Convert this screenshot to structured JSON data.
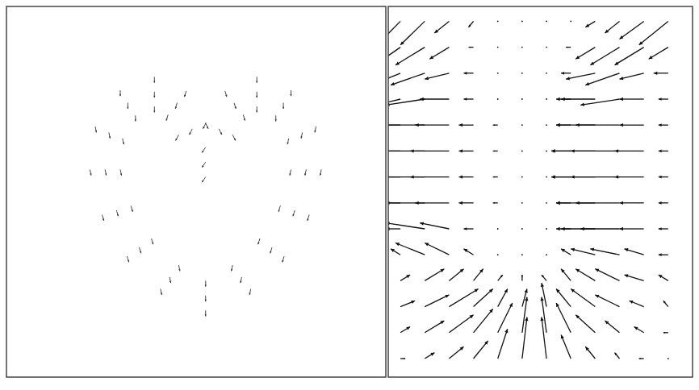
{
  "chart_data": [
    {
      "type": "quiver",
      "xlim": [
        0,
        100
      ],
      "ylim": [
        0,
        100
      ],
      "tick_labels": false,
      "x": [
        52.5,
        52.5,
        52.5,
        45.4,
        43,
        40.6,
        38.2,
        35,
        31.8,
        32.8,
        29,
        25.2,
        30,
        26,
        22,
        30.6,
        27,
        23.4,
        34,
        32,
        30,
        39,
        39,
        39,
        42.6,
        45,
        47.4,
        45.4,
        49,
        52.6,
        52.5,
        52.5,
        52.5,
        59.6,
        62,
        64.4,
        66.8,
        70,
        73.2,
        72.2,
        76,
        79.8,
        75,
        79,
        83,
        74.4,
        78,
        81.6,
        71,
        73,
        75,
        66,
        66,
        66,
        62.4,
        60,
        57.6,
        59.6,
        56,
        52.4
      ],
      "y": [
        18,
        22,
        26,
        30.2,
        27,
        23.8,
        37.4,
        35,
        32.6,
        46.2,
        45,
        43.8,
        56,
        56,
        56,
        64.4,
        66,
        67.6,
        70.6,
        74,
        77.4,
        73,
        77,
        81,
        70.8,
        74,
        77.2,
        65.4,
        67,
        68.6,
        54,
        58,
        62,
        30.2,
        27,
        23.8,
        37.4,
        35,
        32.6,
        46.2,
        45,
        43.8,
        56,
        56,
        56,
        64.4,
        66,
        67.6,
        70.6,
        74,
        77.4,
        73,
        77,
        81,
        70.8,
        74,
        77.2,
        65.4,
        67,
        68.6
      ],
      "u": [
        0,
        0,
        0,
        0.2,
        0.2,
        0.2,
        0.3,
        0.3,
        0.3,
        0.3,
        0.3,
        0.3,
        0.2,
        0.2,
        0.2,
        0.2,
        0.2,
        0.2,
        0,
        0,
        0,
        0,
        0,
        0,
        -0.3,
        -0.3,
        -0.3,
        -0.5,
        -0.5,
        -0.5,
        -0.6,
        -0.6,
        -0.6,
        -0.2,
        -0.2,
        -0.2,
        -0.3,
        -0.3,
        -0.3,
        -0.3,
        -0.3,
        -0.3,
        -0.2,
        -0.2,
        -0.2,
        -0.2,
        -0.2,
        -0.2,
        0,
        0,
        0,
        0,
        0,
        0,
        0.3,
        0.3,
        0.3,
        0.5,
        0.5,
        0.5
      ],
      "v": [
        -1,
        -1,
        -1,
        -1,
        -1,
        -1,
        -1,
        -1,
        -1,
        -1,
        -1,
        -1,
        -1,
        -1,
        -1,
        -1,
        -1,
        -1,
        -1,
        -1,
        -1,
        -1,
        -1,
        -1,
        -1,
        -1,
        -1,
        -1,
        -1,
        -1,
        -0.9,
        -0.9,
        -0.9,
        -1,
        -1,
        -1,
        -1,
        -1,
        -1,
        -1,
        -1,
        -1,
        -1,
        -1,
        -1,
        -1,
        -1,
        -1,
        -1,
        -1,
        -1,
        -1,
        -1,
        -1,
        -1,
        -1,
        -1,
        -1,
        -1,
        -1
      ]
    },
    {
      "type": "quiver",
      "xlim": [
        0,
        100
      ],
      "ylim": [
        0,
        100
      ],
      "tick_labels": false,
      "x": [
        4,
        12,
        20,
        28,
        36,
        44,
        52,
        60,
        68,
        76,
        84,
        92
      ],
      "y": [
        96,
        89,
        82,
        75,
        68,
        61,
        54,
        47,
        40,
        33,
        26,
        19,
        12,
        5
      ],
      "u": [
        [
          -6,
          -5,
          -3,
          -1,
          0,
          0,
          0,
          0,
          -2,
          -3,
          -5,
          -6
        ],
        [
          -7,
          -6,
          -4,
          -1,
          0,
          0,
          0,
          -1,
          -4,
          -6,
          -6,
          -4
        ],
        [
          -6,
          -7,
          -5,
          -2,
          0,
          0,
          0,
          -2,
          -6,
          -7,
          -5,
          -3
        ],
        [
          -5,
          -8,
          -6,
          -2,
          0,
          0,
          0,
          -3,
          -7,
          -8,
          -5,
          -2
        ],
        [
          -4,
          -9,
          -7,
          -3,
          -1,
          0,
          0,
          -3,
          -8,
          -9,
          -5,
          -2
        ],
        [
          -4,
          -10,
          -8,
          -3,
          -1,
          0,
          0,
          -4,
          -9,
          -10,
          -6,
          -2
        ],
        [
          -4,
          -10,
          -8,
          -3,
          -1,
          0,
          0,
          -4,
          -9,
          -10,
          -6,
          -2
        ],
        [
          -3,
          -9,
          -7,
          -3,
          -1,
          0,
          0,
          -3,
          -8,
          -9,
          -5,
          -2
        ],
        [
          -3,
          -8,
          -6,
          -2,
          0,
          0,
          0,
          -3,
          -7,
          -8,
          -5,
          -2
        ],
        [
          -2,
          -6,
          -5,
          -2,
          0,
          0,
          0,
          -2,
          -5,
          -6,
          -4,
          -2
        ],
        [
          2,
          4,
          3,
          2,
          1,
          0,
          -1,
          -2,
          -4,
          -5,
          -4,
          -2
        ],
        [
          3,
          5,
          6,
          4,
          2,
          1,
          -1,
          -3,
          -5,
          -5,
          -3,
          -1
        ],
        [
          2,
          4,
          5,
          4,
          3,
          1,
          -1,
          -3,
          -4,
          -3,
          -2,
          -1
        ],
        [
          1,
          2,
          3,
          3,
          2,
          1,
          -1,
          -2,
          -2,
          -1,
          -1,
          0
        ]
      ],
      "v": [
        [
          -5,
          -4,
          -2,
          -1,
          0,
          0,
          0,
          0,
          -1,
          -2,
          -3,
          -4
        ],
        [
          -4,
          -3,
          -2,
          0,
          0,
          0,
          0,
          0,
          -2,
          -3,
          -3,
          -2
        ],
        [
          -2,
          -2,
          -1,
          0,
          0,
          0,
          0,
          0,
          -1,
          -2,
          -1,
          0
        ],
        [
          -1,
          -1,
          0,
          0,
          0,
          0,
          0,
          0,
          0,
          -1,
          0,
          0
        ],
        [
          0,
          0,
          0,
          0,
          0,
          0,
          0,
          0,
          0,
          0,
          0,
          0
        ],
        [
          0,
          0,
          0,
          0,
          0,
          0,
          0,
          0,
          0,
          0,
          0,
          0
        ],
        [
          0,
          0,
          0,
          0,
          0,
          0,
          0,
          0,
          0,
          0,
          0,
          0
        ],
        [
          0,
          0,
          0,
          0,
          0,
          0,
          0,
          0,
          0,
          0,
          0,
          0
        ],
        [
          0,
          1,
          1,
          0,
          0,
          0,
          0,
          0,
          0,
          0,
          0,
          0
        ],
        [
          1,
          2,
          2,
          1,
          0,
          0,
          0,
          1,
          1,
          1,
          1,
          0
        ],
        [
          1,
          2,
          2,
          2,
          1,
          1,
          1,
          2,
          2,
          2,
          1,
          1
        ],
        [
          1,
          2,
          3,
          3,
          3,
          3,
          4,
          3,
          3,
          2,
          1,
          1
        ],
        [
          1,
          2,
          3,
          4,
          5,
          6,
          6,
          5,
          3,
          2,
          1,
          0
        ],
        [
          0,
          1,
          2,
          3,
          5,
          7,
          7,
          4,
          2,
          1,
          0,
          0
        ]
      ]
    }
  ]
}
